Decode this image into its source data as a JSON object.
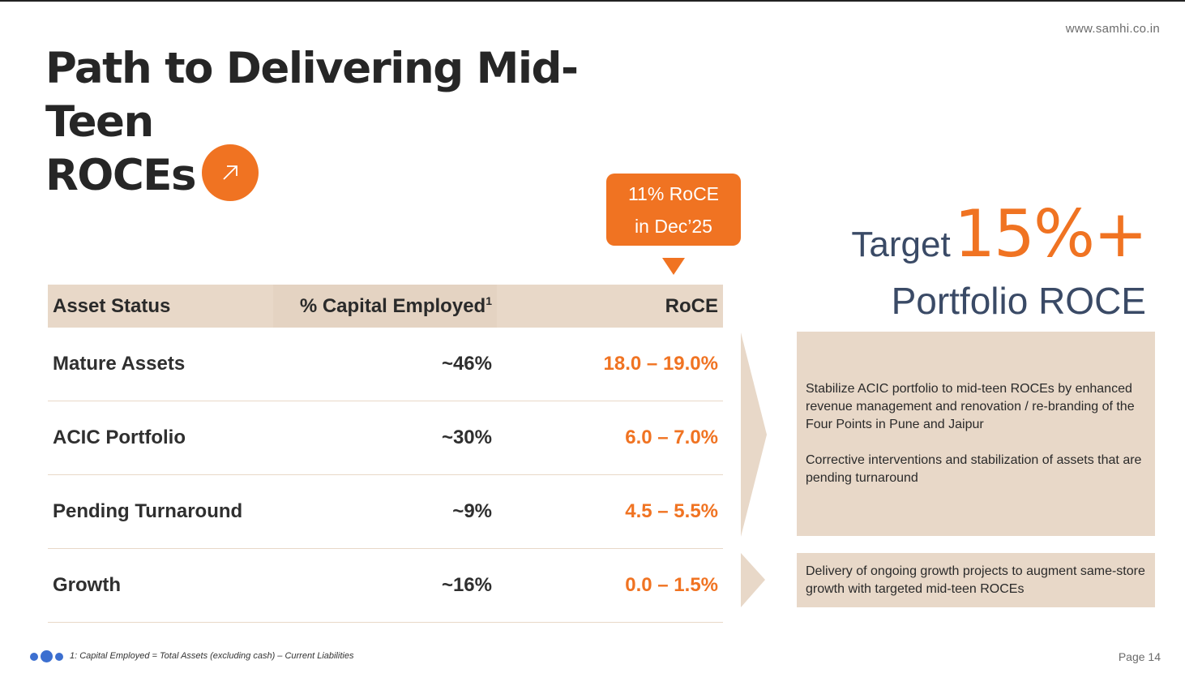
{
  "header": {
    "url": "www.samhi.co.in"
  },
  "title": {
    "line1": "Path to Delivering Mid-Teen",
    "line2": "ROCEs"
  },
  "callout": {
    "line1": "11% RoCE",
    "line2": "in Dec’25"
  },
  "table": {
    "headers": {
      "status": "Asset Status",
      "capital": "% Capital Employed",
      "capital_sup": "1",
      "roce": "RoCE"
    },
    "rows": [
      {
        "status": "Mature Assets",
        "capital": "~46%",
        "roce": "18.0 – 19.0%"
      },
      {
        "status": "ACIC Portfolio",
        "capital": "~30%",
        "roce": "6.0 – 7.0%"
      },
      {
        "status": "Pending Turnaround",
        "capital": "~9%",
        "roce": "4.5 – 5.5%"
      },
      {
        "status": "Growth",
        "capital": "~16%",
        "roce": "0.0 – 1.5%"
      }
    ]
  },
  "target": {
    "label": "Target",
    "value": "15%+",
    "subtitle": "Portfolio ROCE"
  },
  "notes": {
    "box1_p1": "Stabilize ACIC portfolio to mid-teen ROCEs by enhanced revenue management and renovation / re-branding of the Four Points in Pune and Jaipur",
    "box1_p2": "Corrective interventions and stabilization of assets that are pending turnaround",
    "box2": "Delivery of ongoing growth projects to augment same-store growth with targeted mid-teen ROCEs"
  },
  "footer": {
    "footnote": "1: Capital Employed = Total Assets (excluding cash) – Current Liabilities",
    "page": "Page 14"
  },
  "colors": {
    "accent": "#f07322",
    "beige": "#e8d8c8",
    "navy": "#3a4a66",
    "dot_blue": "#3c6fd0"
  }
}
